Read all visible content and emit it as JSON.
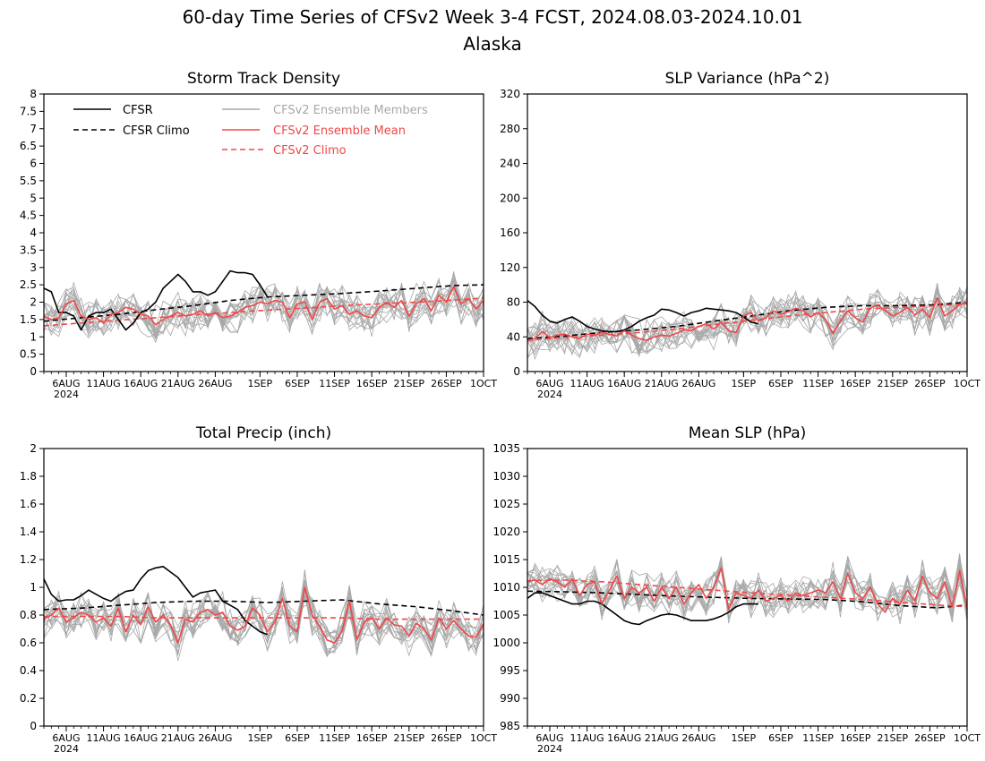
{
  "figure": {
    "title_line1": "60-day Time Series of CFSv2 Week 3-4 FCST, 2024.08.03-2024.10.01",
    "title_line2": "Alaska"
  },
  "legend": {
    "cfsr": "CFSR",
    "cfsr_climo": "CFSR Climo",
    "ens_members": "CFSv2 Ensemble Members",
    "ens_mean": "CFSv2 Ensemble Mean",
    "cfsv2_climo": "CFSv2 Climo"
  },
  "colors": {
    "cfsr": "#000000",
    "cfsr_climo": "#000000",
    "ens_members": "#a8a8a8",
    "ens_mean": "#f04848",
    "cfsv2_climo": "#f04848"
  },
  "x_axis": {
    "tick_labels": [
      "6AUG",
      "11AUG",
      "16AUG",
      "21AUG",
      "26AUG",
      "1SEP",
      "6SEP",
      "11SEP",
      "16SEP",
      "21SEP",
      "26SEP",
      "1OCT"
    ],
    "tick_days": [
      3,
      8,
      13,
      18,
      23,
      29,
      34,
      39,
      44,
      49,
      54,
      59
    ],
    "year_label": "2024",
    "xlim_days": [
      0,
      59
    ]
  },
  "chart_data": [
    {
      "type": "line",
      "title": "Storm Track Density",
      "ylim": [
        0,
        8
      ],
      "yticks": [
        "0",
        "0.5",
        "1",
        "1.5",
        "2",
        "2.5",
        "3",
        "3.5",
        "4",
        "4.5",
        "5",
        "5.5",
        "6",
        "6.5",
        "7",
        "7.5",
        "8"
      ],
      "legend_position": "top-left",
      "series": [
        {
          "name": "CFSR",
          "x": [
            0,
            1,
            2,
            3,
            4,
            5,
            6,
            7,
            8,
            9,
            10,
            11,
            12,
            13,
            14,
            15,
            16,
            17,
            18,
            19,
            20,
            21,
            22,
            23,
            24,
            25,
            26,
            27,
            28,
            29,
            30
          ],
          "values": [
            2.4,
            2.3,
            1.7,
            1.7,
            1.6,
            1.2,
            1.6,
            1.7,
            1.7,
            1.8,
            1.5,
            1.2,
            1.4,
            1.7,
            1.8,
            2.0,
            2.4,
            2.6,
            2.8,
            2.6,
            2.3,
            2.3,
            2.2,
            2.3,
            2.6,
            2.9,
            2.85,
            2.85,
            2.8,
            2.5,
            2.15
          ]
        },
        {
          "name": "CFSR Climo",
          "x": [
            0,
            5,
            10,
            15,
            20,
            25,
            30,
            35,
            40,
            45,
            50,
            55,
            59
          ],
          "values": [
            1.45,
            1.55,
            1.65,
            1.78,
            1.9,
            2.05,
            2.15,
            2.2,
            2.25,
            2.32,
            2.4,
            2.48,
            2.5
          ]
        },
        {
          "name": "CFSv2 Ensemble Mean",
          "x": [
            0,
            1,
            2,
            3,
            4,
            5,
            6,
            7,
            8,
            9,
            10,
            11,
            12,
            13,
            14,
            15,
            16,
            17,
            18,
            19,
            20,
            21,
            22,
            23,
            24,
            25,
            26,
            27,
            28,
            29,
            30,
            31,
            32,
            33,
            34,
            35,
            36,
            37,
            38,
            39,
            40,
            41,
            42,
            43,
            44,
            45,
            46,
            47,
            48,
            49,
            50,
            51,
            52,
            53,
            54,
            55,
            56,
            57,
            58,
            59
          ],
          "values": [
            1.6,
            1.5,
            1.55,
            1.95,
            2.05,
            1.6,
            1.5,
            1.55,
            1.4,
            1.65,
            1.7,
            1.85,
            1.8,
            1.65,
            1.6,
            1.35,
            1.5,
            1.6,
            1.7,
            1.6,
            1.65,
            1.75,
            1.6,
            1.7,
            1.55,
            1.6,
            1.7,
            1.85,
            1.9,
            2.0,
            1.95,
            2.05,
            2.0,
            1.55,
            1.95,
            2.0,
            1.5,
            2.0,
            2.1,
            1.8,
            1.9,
            1.65,
            1.75,
            1.6,
            1.55,
            1.85,
            2.0,
            1.85,
            2.05,
            1.6,
            1.95,
            2.1,
            1.75,
            2.2,
            2.0,
            2.45,
            1.95,
            2.1,
            1.8,
            2.05
          ]
        },
        {
          "name": "CFSv2 Climo",
          "x": [
            0,
            5,
            10,
            15,
            20,
            25,
            30,
            35,
            40,
            45,
            50,
            55,
            59
          ],
          "values": [
            1.32,
            1.4,
            1.48,
            1.55,
            1.63,
            1.7,
            1.77,
            1.83,
            1.9,
            1.95,
            2.0,
            2.06,
            2.12
          ]
        }
      ]
    },
    {
      "type": "line",
      "title": "SLP Variance (hPa^2)",
      "ylim": [
        0,
        320
      ],
      "yticks": [
        "0",
        "40",
        "80",
        "120",
        "160",
        "200",
        "240",
        "280",
        "320"
      ],
      "series": [
        {
          "name": "CFSR",
          "x": [
            0,
            1,
            2,
            3,
            4,
            5,
            6,
            7,
            8,
            9,
            10,
            11,
            12,
            13,
            14,
            15,
            16,
            17,
            18,
            19,
            20,
            21,
            22,
            23,
            24,
            25,
            26,
            27,
            28,
            29,
            30,
            31
          ],
          "values": [
            82,
            75,
            65,
            58,
            56,
            60,
            63,
            58,
            52,
            49,
            47,
            46,
            46,
            48,
            52,
            58,
            62,
            65,
            72,
            71,
            68,
            64,
            68,
            70,
            73,
            72,
            71,
            70,
            68,
            63,
            57,
            55
          ]
        },
        {
          "name": "CFSR Climo",
          "x": [
            0,
            5,
            10,
            15,
            20,
            25,
            30,
            35,
            40,
            45,
            50,
            55,
            59
          ],
          "values": [
            38,
            41,
            45,
            48,
            52,
            58,
            64,
            70,
            74,
            76,
            76,
            77,
            80
          ]
        },
        {
          "name": "CFSv2 Ensemble Mean",
          "x": [
            0,
            1,
            2,
            3,
            4,
            5,
            6,
            7,
            8,
            9,
            10,
            11,
            12,
            13,
            14,
            15,
            16,
            17,
            18,
            19,
            20,
            21,
            22,
            23,
            24,
            25,
            26,
            27,
            28,
            29,
            30,
            31,
            32,
            33,
            34,
            35,
            36,
            37,
            38,
            39,
            40,
            41,
            42,
            43,
            44,
            45,
            46,
            47,
            48,
            49,
            50,
            51,
            52,
            53,
            54,
            55,
            56,
            57,
            58,
            59
          ],
          "values": [
            36,
            38,
            46,
            39,
            42,
            43,
            40,
            38,
            43,
            42,
            45,
            43,
            41,
            47,
            42,
            38,
            36,
            40,
            42,
            41,
            44,
            48,
            47,
            52,
            55,
            49,
            57,
            47,
            45,
            64,
            68,
            58,
            62,
            70,
            66,
            69,
            73,
            70,
            63,
            68,
            60,
            44,
            58,
            70,
            62,
            57,
            73,
            77,
            70,
            64,
            68,
            74,
            65,
            72,
            62,
            85,
            64,
            70,
            77,
            80
          ]
        },
        {
          "name": "CFSv2 Climo",
          "x": [
            0,
            5,
            10,
            15,
            20,
            25,
            30,
            35,
            40,
            45,
            50,
            55,
            59
          ],
          "values": [
            36,
            39,
            42,
            45,
            49,
            54,
            59,
            64,
            68,
            72,
            74,
            76,
            78
          ]
        }
      ]
    },
    {
      "type": "line",
      "title": "Total Precip (inch)",
      "ylim": [
        0,
        2
      ],
      "yticks": [
        "0",
        "0.2",
        "0.4",
        "0.6",
        "0.8",
        "1",
        "1.2",
        "1.4",
        "1.6",
        "1.8",
        "2"
      ],
      "series": [
        {
          "name": "CFSR",
          "x": [
            0,
            1,
            2,
            3,
            4,
            5,
            6,
            7,
            8,
            9,
            10,
            11,
            12,
            13,
            14,
            15,
            16,
            17,
            18,
            19,
            20,
            21,
            22,
            23,
            24,
            25,
            26,
            27,
            28,
            29,
            30
          ],
          "values": [
            1.06,
            0.95,
            0.9,
            0.91,
            0.91,
            0.94,
            0.98,
            0.95,
            0.92,
            0.9,
            0.94,
            0.97,
            0.98,
            1.06,
            1.12,
            1.14,
            1.15,
            1.11,
            1.07,
            1.0,
            0.93,
            0.96,
            0.97,
            0.98,
            0.9,
            0.87,
            0.84,
            0.76,
            0.72,
            0.68,
            0.66
          ]
        },
        {
          "name": "CFSR Climo",
          "x": [
            0,
            5,
            10,
            15,
            20,
            25,
            30,
            35,
            40,
            45,
            50,
            55,
            59
          ],
          "values": [
            0.84,
            0.85,
            0.87,
            0.89,
            0.9,
            0.9,
            0.89,
            0.9,
            0.91,
            0.88,
            0.86,
            0.83,
            0.8
          ]
        },
        {
          "name": "CFSv2 Ensemble Mean",
          "x": [
            0,
            1,
            2,
            3,
            4,
            5,
            6,
            7,
            8,
            9,
            10,
            11,
            12,
            13,
            14,
            15,
            16,
            17,
            18,
            19,
            20,
            21,
            22,
            23,
            24,
            25,
            26,
            27,
            28,
            29,
            30,
            31,
            32,
            33,
            34,
            35,
            36,
            37,
            38,
            39,
            40,
            41,
            42,
            43,
            44,
            45,
            46,
            47,
            48,
            49,
            50,
            51,
            52,
            53,
            54,
            55,
            56,
            57,
            58,
            59
          ],
          "values": [
            0.77,
            0.8,
            0.85,
            0.75,
            0.78,
            0.82,
            0.8,
            0.75,
            0.78,
            0.72,
            0.85,
            0.68,
            0.8,
            0.73,
            0.86,
            0.75,
            0.8,
            0.73,
            0.6,
            0.77,
            0.75,
            0.82,
            0.84,
            0.8,
            0.82,
            0.72,
            0.69,
            0.72,
            0.85,
            0.8,
            0.68,
            0.75,
            0.92,
            0.72,
            0.68,
            1.0,
            0.8,
            0.72,
            0.62,
            0.6,
            0.68,
            0.9,
            0.62,
            0.75,
            0.78,
            0.7,
            0.78,
            0.73,
            0.72,
            0.65,
            0.74,
            0.7,
            0.62,
            0.78,
            0.7,
            0.76,
            0.7,
            0.65,
            0.64,
            0.74
          ]
        },
        {
          "name": "CFSv2 Climo",
          "x": [
            0,
            5,
            10,
            15,
            20,
            25,
            30,
            35,
            40,
            45,
            50,
            55,
            59
          ],
          "values": [
            0.79,
            0.79,
            0.79,
            0.78,
            0.78,
            0.78,
            0.78,
            0.78,
            0.78,
            0.77,
            0.77,
            0.77,
            0.77
          ]
        }
      ]
    },
    {
      "type": "line",
      "title": "Mean SLP (hPa)",
      "ylim": [
        985,
        1035
      ],
      "yticks": [
        "985",
        "990",
        "995",
        "1000",
        "1005",
        "1010",
        "1015",
        "1020",
        "1025",
        "1030",
        "1035"
      ],
      "series": [
        {
          "name": "CFSR",
          "x": [
            0,
            1,
            2,
            3,
            4,
            5,
            6,
            7,
            8,
            9,
            10,
            11,
            12,
            13,
            14,
            15,
            16,
            17,
            18,
            19,
            20,
            21,
            22,
            23,
            24,
            25,
            26,
            27,
            28,
            29,
            30,
            31
          ],
          "values": [
            1008,
            1009,
            1009,
            1008.5,
            1008,
            1007.5,
            1007,
            1007,
            1007.5,
            1007.5,
            1007,
            1006,
            1005,
            1004,
            1003.5,
            1003.3,
            1004,
            1004.5,
            1005,
            1005.2,
            1005,
            1004.5,
            1004,
            1004,
            1004,
            1004.3,
            1004.8,
            1005.5,
            1006.5,
            1007,
            1007,
            1007
          ]
        },
        {
          "name": "CFSR Climo",
          "x": [
            0,
            5,
            10,
            15,
            20,
            25,
            30,
            35,
            40,
            45,
            50,
            55,
            59
          ],
          "values": [
            1009.3,
            1009.2,
            1009.0,
            1008.7,
            1008.4,
            1008.2,
            1008.0,
            1007.9,
            1007.8,
            1007.4,
            1006.7,
            1006.3,
            1006.8
          ]
        },
        {
          "name": "CFSv2 Ensemble Mean",
          "x": [
            0,
            1,
            2,
            3,
            4,
            5,
            6,
            7,
            8,
            9,
            10,
            11,
            12,
            13,
            14,
            15,
            16,
            17,
            18,
            19,
            20,
            21,
            22,
            23,
            24,
            25,
            26,
            27,
            28,
            29,
            30,
            31,
            32,
            33,
            34,
            35,
            36,
            37,
            38,
            39,
            40,
            41,
            42,
            43,
            44,
            45,
            46,
            47,
            48,
            49,
            50,
            51,
            52,
            53,
            54,
            55,
            56,
            57,
            58,
            59
          ],
          "values": [
            1011,
            1011.3,
            1010.5,
            1011.5,
            1011,
            1010,
            1011.5,
            1008.5,
            1010.5,
            1011,
            1007,
            1009.5,
            1012,
            1008,
            1010,
            1009,
            1010,
            1007.5,
            1010,
            1008,
            1010,
            1007,
            1009,
            1010.5,
            1008,
            1010,
            1013.5,
            1006,
            1009,
            1008.5,
            1008,
            1009.5,
            1007.5,
            1008,
            1008.5,
            1007.5,
            1009,
            1008.5,
            1009,
            1009.5,
            1009,
            1011,
            1008,
            1012.5,
            1009,
            1008,
            1010,
            1007,
            1005.5,
            1008,
            1007,
            1009.5,
            1007.5,
            1012,
            1009,
            1008,
            1011,
            1006.5,
            1013,
            1006
          ]
        },
        {
          "name": "CFSv2 Climo",
          "x": [
            0,
            5,
            10,
            15,
            20,
            25,
            30,
            35,
            40,
            45,
            50,
            55,
            59
          ],
          "values": [
            1011.2,
            1011.3,
            1011.0,
            1010.5,
            1010.0,
            1009.5,
            1009.0,
            1008.6,
            1008.2,
            1007.8,
            1007.3,
            1006.8,
            1006.5
          ]
        }
      ]
    }
  ]
}
